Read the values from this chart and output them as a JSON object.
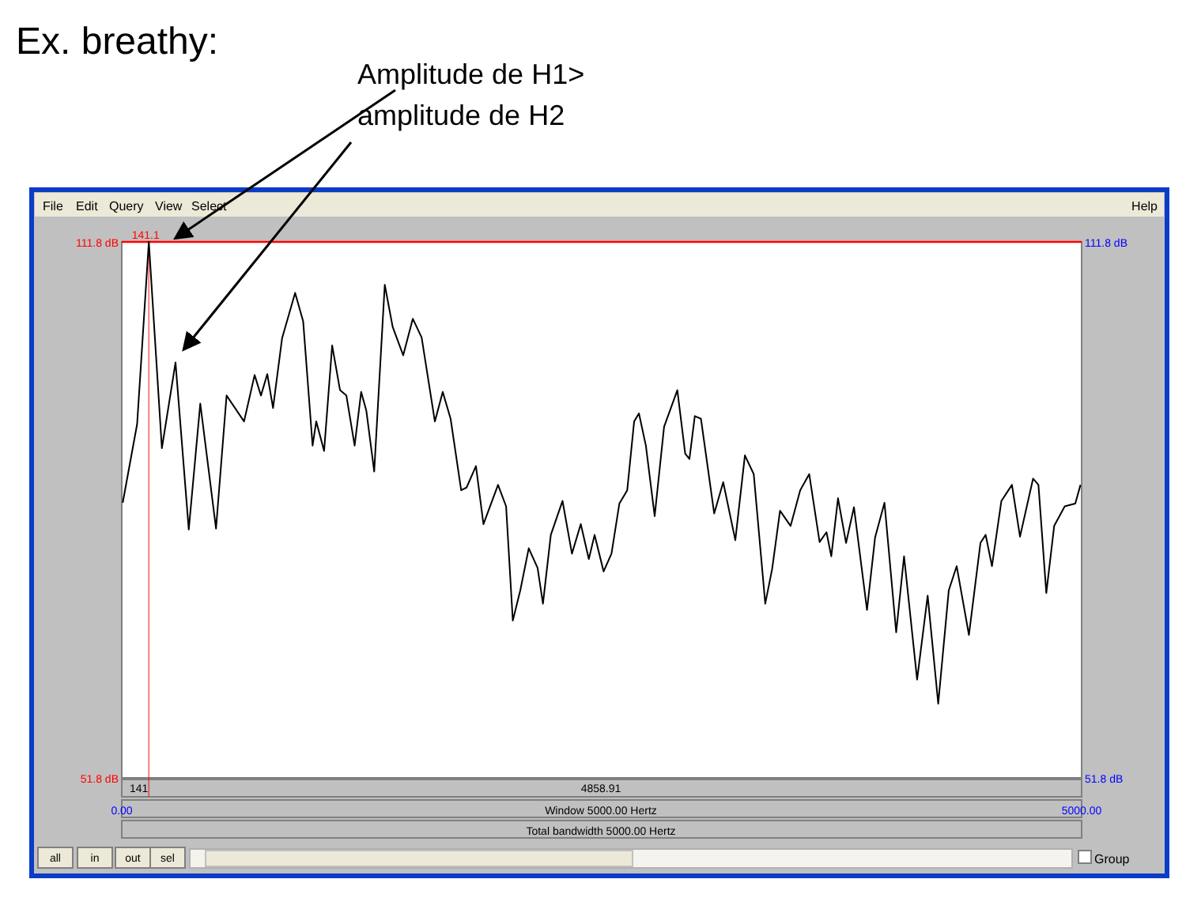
{
  "chart_data": {
    "type": "line",
    "title": "Ex. breathy:",
    "annotations": [
      "Amplitude de H1>\namplitude de H2",
      "141",
      "4858.91",
      "Window 5000.00 Hertz",
      "Total bandwidth 5000.00 Hertz",
      "File",
      "Edit",
      "Query",
      "View",
      "Select",
      "Help",
      "all",
      "in",
      "out",
      "sel",
      "Group"
    ],
    "xlim": [
      0,
      5000
    ],
    "xticks": [
      {
        "value": 0,
        "label": "0.00"
      },
      {
        "value": 5000,
        "label": "5000.00"
      }
    ],
    "ylim": [
      51.8,
      111.8
    ],
    "yticks": [
      {
        "value": 51.8,
        "label": "51.8 dB"
      },
      {
        "value": 111.8,
        "label": "111.8 dB"
      }
    ],
    "ref_lines": [
      {
        "axis": "x",
        "value": 141.1,
        "label": "141.1",
        "color": "#ff0000"
      },
      {
        "axis": "y",
        "value": 111.8,
        "color": "#ff0000"
      }
    ],
    "x": [
      5,
      80,
      141,
      209,
      280,
      349,
      409,
      491,
      546,
      637,
      692,
      725,
      758,
      788,
      835,
      903,
      945,
      994,
      1013,
      1054,
      1096,
      1137,
      1170,
      1213,
      1247,
      1274,
      1315,
      1370,
      1411,
      1466,
      1516,
      1562,
      1631,
      1672,
      1713,
      1768,
      1796,
      1845,
      1884,
      1960,
      2002,
      2037,
      2076,
      2120,
      2166,
      2194,
      2235,
      2296,
      2345,
      2391,
      2433,
      2463,
      2510,
      2551,
      2592,
      2633,
      2669,
      2694,
      2730,
      2776,
      2825,
      2894,
      2935,
      2957,
      2985,
      3017,
      3086,
      3133,
      3196,
      3246,
      3292,
      3352,
      3388,
      3429,
      3484,
      3534,
      3581,
      3635,
      3671,
      3696,
      3731,
      3773,
      3814,
      3882,
      3924,
      3973,
      4034,
      4075,
      4143,
      4198,
      4253,
      4308,
      4349,
      4413,
      4473,
      4500,
      4533,
      4582,
      4637,
      4679,
      4747,
      4775,
      4816,
      4857,
      4912,
      4967,
      4994
    ],
    "series": [
      {
        "color": "#000000",
        "values": [
          82.6,
          91.4,
          111.8,
          88.7,
          98.3,
          79.6,
          93.7,
          79.7,
          94.6,
          91.7,
          96.9,
          94.6,
          97.0,
          93.2,
          101.0,
          106.1,
          102.9,
          89.0,
          91.7,
          88.4,
          100.2,
          95.2,
          94.6,
          89.0,
          95.0,
          92.9,
          86.1,
          107.0,
          102.3,
          99.1,
          103.2,
          101.1,
          91.7,
          95.0,
          92.0,
          84.0,
          84.3,
          86.7,
          80.2,
          84.6,
          82.2,
          69.4,
          72.8,
          77.5,
          75.3,
          71.3,
          79.0,
          82.8,
          76.9,
          80.2,
          76.3,
          79.0,
          74.9,
          76.9,
          82.5,
          84.0,
          91.7,
          92.6,
          89.0,
          81.1,
          91.1,
          95.2,
          88.1,
          87.5,
          92.3,
          92.0,
          81.4,
          84.9,
          78.4,
          87.9,
          85.8,
          71.3,
          75.2,
          81.7,
          80.0,
          84.0,
          85.8,
          78.2,
          79.3,
          76.6,
          83.1,
          78.1,
          82.1,
          70.6,
          78.7,
          82.6,
          68.1,
          76.6,
          62.8,
          72.2,
          60.1,
          72.8,
          75.5,
          67.8,
          78.1,
          79.0,
          75.5,
          82.8,
          84.6,
          78.8,
          85.3,
          84.6,
          72.5,
          80.0,
          82.2,
          82.5,
          84.6
        ]
      }
    ]
  }
}
